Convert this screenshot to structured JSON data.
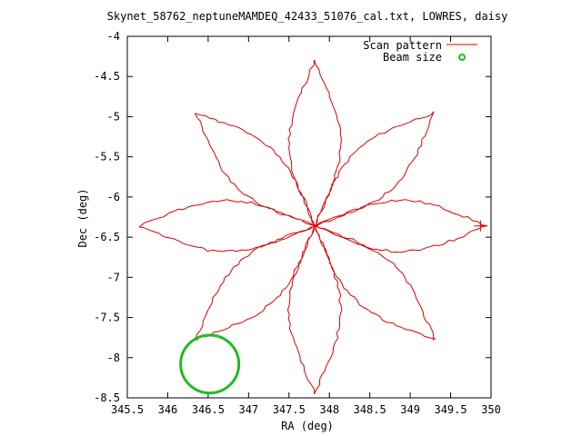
{
  "chart_data": {
    "type": "line",
    "title": "Skynet_58762_neptuneMAMDEQ_42433_51076_cal.txt, LOWRES, daisy",
    "xlabel": "RA (deg)",
    "ylabel": "Dec (deg)",
    "xlim": [
      345.5,
      350
    ],
    "ylim": [
      -8.5,
      -4
    ],
    "xticks": [
      345.5,
      346,
      346.5,
      347,
      347.5,
      348,
      348.5,
      349,
      349.5,
      350
    ],
    "yticks": [
      -4,
      -4.5,
      -5,
      -5.5,
      -6,
      -6.5,
      -7,
      -7.5,
      -8,
      -8.5
    ],
    "xtick_labels": [
      "345.5",
      "346",
      "346.5",
      "347",
      "347.5",
      "348",
      "348.5",
      "349",
      "349.5",
      "350"
    ],
    "ytick_labels": [
      "-4",
      "-4.5",
      "-5",
      "-5.5",
      "-6",
      "-6.5",
      "-7",
      "-7.5",
      "-8",
      "-8.5"
    ],
    "grid": false,
    "legend_position": "top-right",
    "series": [
      {
        "name": "Scan pattern",
        "style": "line",
        "color": "#e00000",
        "center": [
          347.82,
          -6.36
        ],
        "petal_count": 8,
        "petal_radius_deg": 2.0,
        "petal_width_deg": 0.32,
        "tips": [
          {
            "ra": 347.82,
            "dec": -4.3
          },
          {
            "ra": 349.3,
            "dec": -4.95
          },
          {
            "ra": 349.95,
            "dec": -6.36
          },
          {
            "ra": 349.3,
            "dec": -7.77
          },
          {
            "ra": 347.82,
            "dec": -8.45
          },
          {
            "ra": 346.35,
            "dec": -7.77
          },
          {
            "ra": 345.65,
            "dec": -6.36
          },
          {
            "ra": 346.35,
            "dec": -4.95
          }
        ],
        "marker_point": {
          "ra": 349.87,
          "dec": -6.36
        }
      },
      {
        "name": "Beam size",
        "style": "circle",
        "color": "#22bb22",
        "center": [
          346.52,
          -8.08
        ],
        "radius_deg": 0.36
      }
    ]
  }
}
